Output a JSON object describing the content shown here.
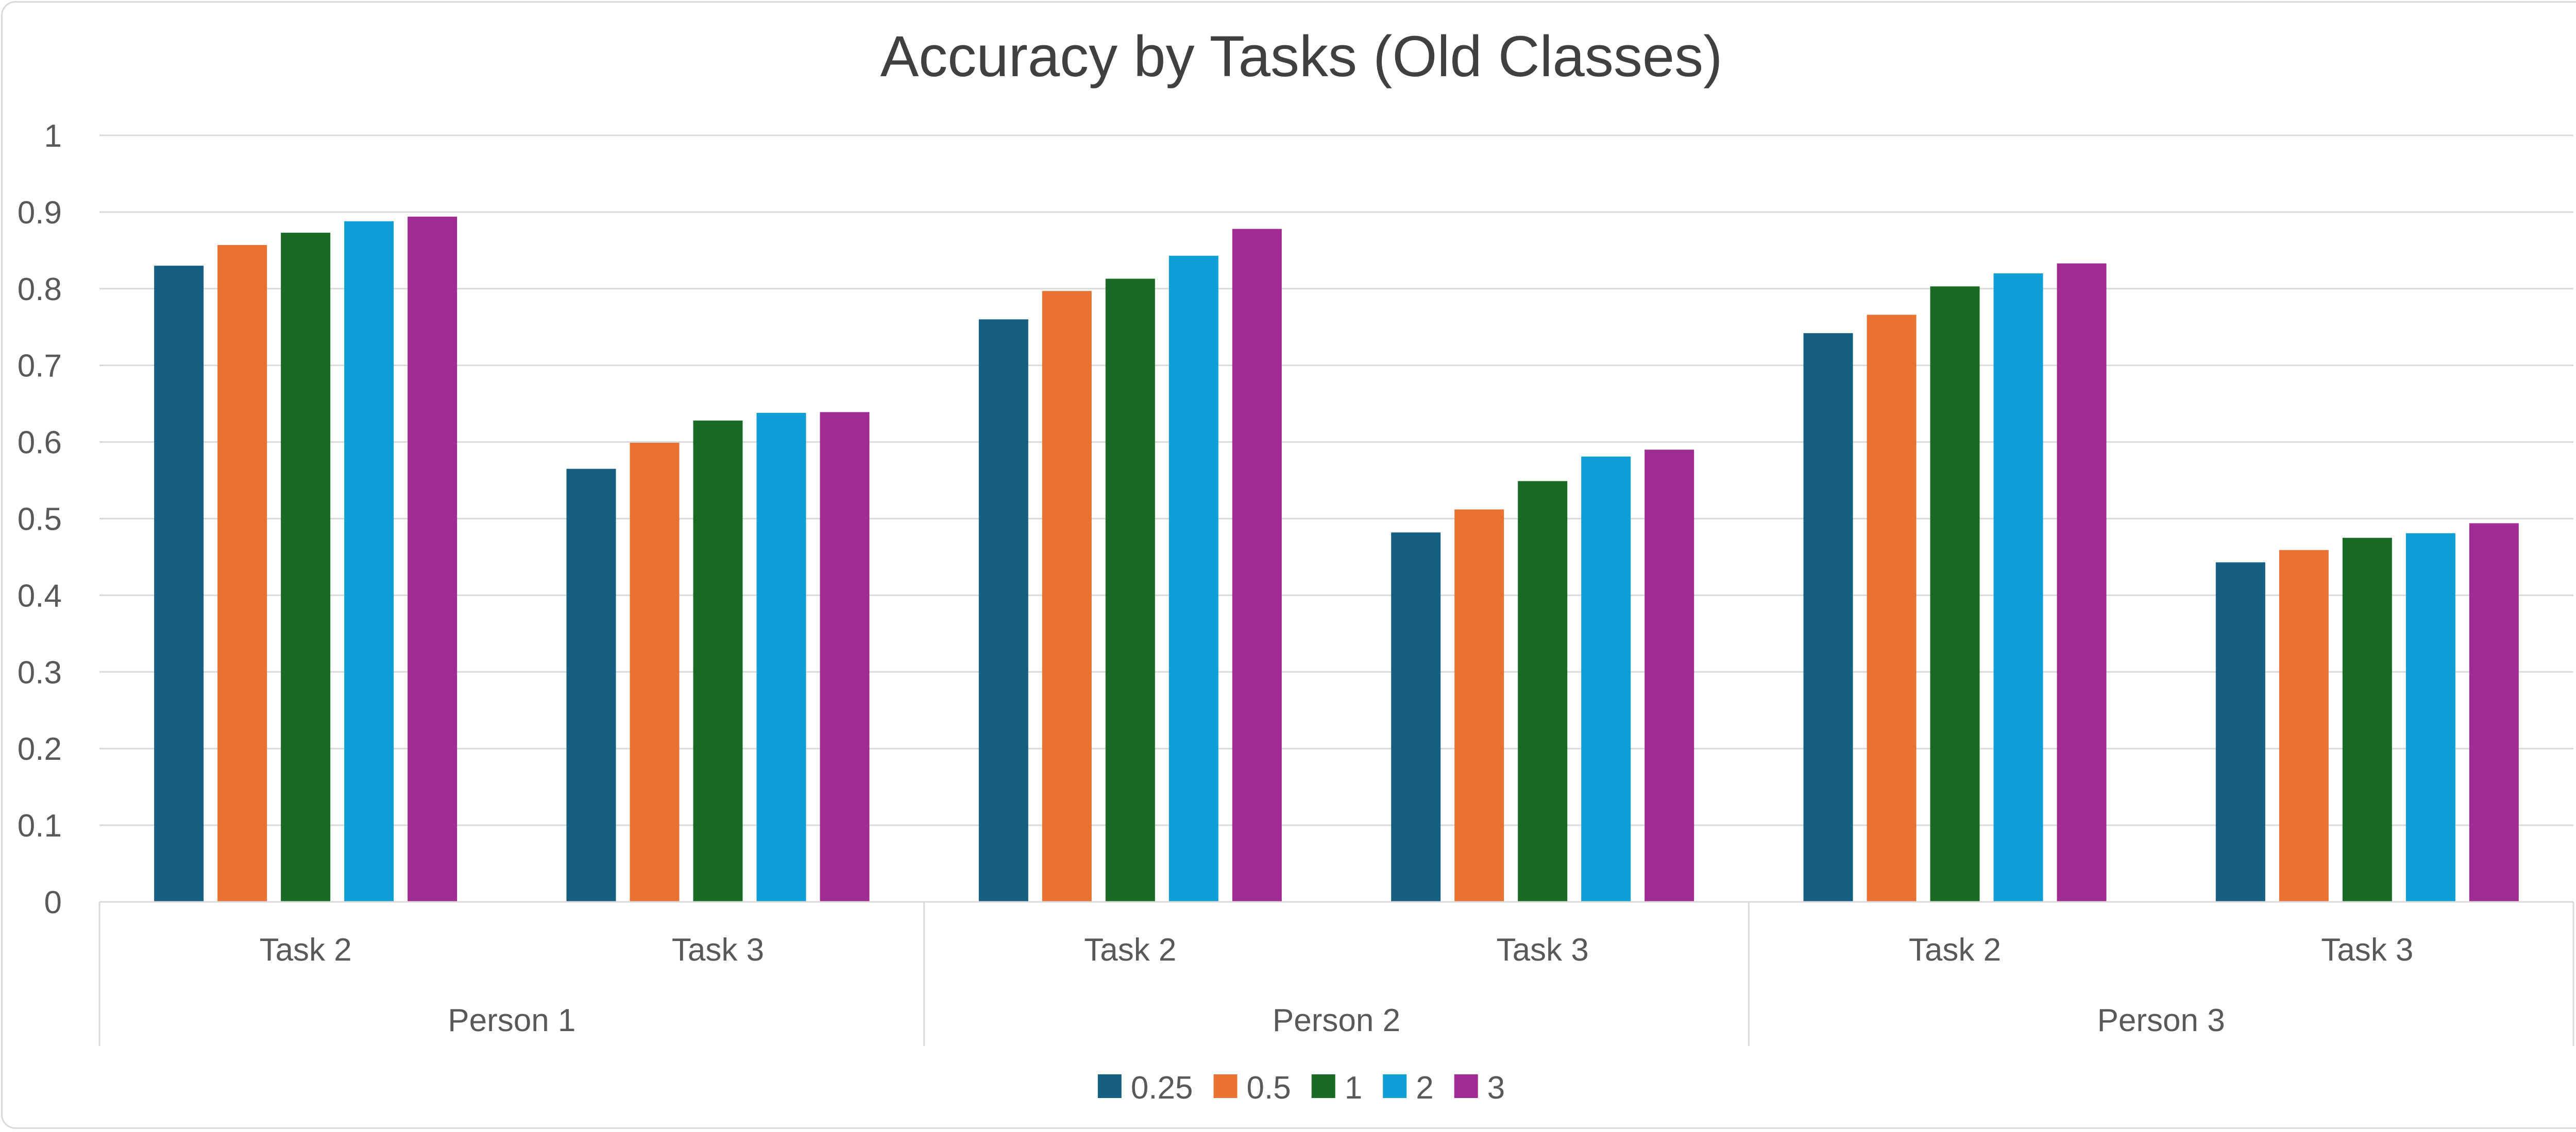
{
  "chart_data": {
    "type": "bar",
    "title": "Accuracy by Tasks (Old Classes)",
    "xlabel": "",
    "ylabel": "",
    "ylim": [
      0,
      1
    ],
    "y_ticks": [
      "0",
      "0.1",
      "0.2",
      "0.3",
      "0.4",
      "0.5",
      "0.6",
      "0.7",
      "0.8",
      "0.9",
      "1"
    ],
    "groups": [
      "Person 1",
      "Person 2",
      "Person 3"
    ],
    "categories": [
      "Task 2",
      "Task 3",
      "Task 2",
      "Task 3",
      "Task 2",
      "Task 3"
    ],
    "category_group": [
      0,
      0,
      1,
      1,
      2,
      2
    ],
    "grid": true,
    "legend_position": "bottom",
    "series": [
      {
        "name": "0.25",
        "color": "#156082",
        "values": [
          0.83,
          0.565,
          0.76,
          0.482,
          0.742,
          0.443
        ]
      },
      {
        "name": "0.5",
        "color": "#E97132",
        "values": [
          0.857,
          0.599,
          0.797,
          0.512,
          0.766,
          0.459
        ]
      },
      {
        "name": "1",
        "color": "#196B24",
        "values": [
          0.873,
          0.628,
          0.813,
          0.549,
          0.803,
          0.475
        ]
      },
      {
        "name": "2",
        "color": "#0F9ED5",
        "values": [
          0.888,
          0.638,
          0.843,
          0.581,
          0.82,
          0.481
        ]
      },
      {
        "name": "3",
        "color": "#A02B93",
        "values": [
          0.894,
          0.639,
          0.878,
          0.59,
          0.833,
          0.494
        ]
      }
    ]
  }
}
